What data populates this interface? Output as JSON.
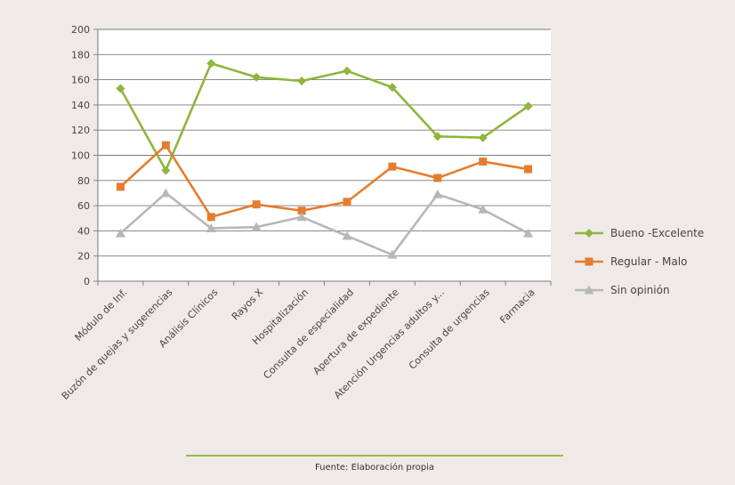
{
  "chart_data": {
    "type": "line",
    "categories": [
      "Módulo de Inf.",
      "Buzón de quejas y sugerencias",
      "Análisis Clínicos",
      "Rayos X",
      "Hospitalización",
      "Consulta de especialidad",
      "Apertura de expediente",
      "Atención Urgencias adultos y...",
      "Consulta de urgencias",
      "Farmacia"
    ],
    "series": [
      {
        "name": "Bueno -Excelente",
        "color": "#8db63c",
        "marker": "diamond",
        "values": [
          153,
          88,
          173,
          162,
          159,
          167,
          154,
          115,
          114,
          139
        ]
      },
      {
        "name": "Regular - Malo",
        "color": "#e57d2e",
        "marker": "square",
        "values": [
          75,
          108,
          51,
          61,
          56,
          63,
          91,
          82,
          95,
          89
        ]
      },
      {
        "name": "Sin opinión",
        "color": "#b7b7b7",
        "marker": "triangle",
        "values": [
          38,
          70,
          42,
          43,
          51,
          36,
          21,
          69,
          57,
          38
        ]
      }
    ],
    "ylim": [
      0,
      200
    ],
    "yticks": [
      0,
      20,
      40,
      60,
      80,
      100,
      120,
      140,
      160,
      180,
      200
    ],
    "grid": true,
    "legend": "right"
  },
  "source": "Fuente: Elaboración propia"
}
